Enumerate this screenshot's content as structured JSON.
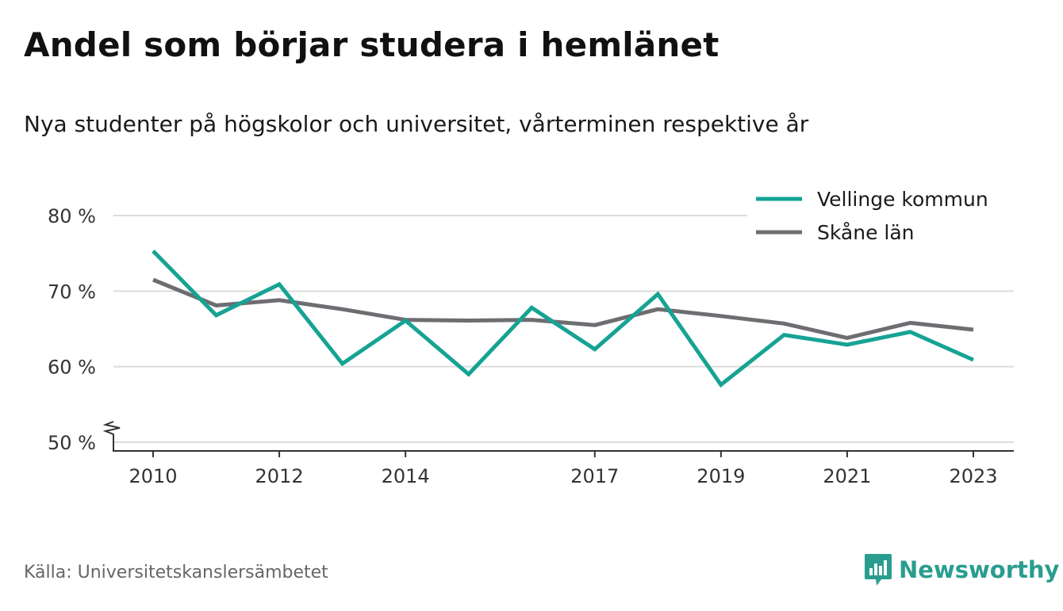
{
  "title": "Andel som börjar studera i hemlänet",
  "subtitle": "Nya studenter på högskolor och universitet, vårterminen respektive år",
  "source": "Källa: Universitetskanslersämbetet",
  "brand": {
    "name": "Newsworthy",
    "icon": "newsworthy-logo-icon",
    "color": "#2a9d8f"
  },
  "chart_data": {
    "type": "line",
    "x": [
      2010,
      2011,
      2012,
      2013,
      2014,
      2015,
      2016,
      2017,
      2018,
      2019,
      2020,
      2021,
      2022,
      2023
    ],
    "x_tick_labels": [
      "2010",
      "2012",
      "2014",
      "2017",
      "2019",
      "2021",
      "2023"
    ],
    "x_tick_values": [
      2010,
      2012,
      2014,
      2017,
      2019,
      2021,
      2023
    ],
    "y_tick_labels": [
      "80 %",
      "70 %",
      "60 %",
      "50 %"
    ],
    "y_tick_values": [
      80,
      70,
      60,
      50
    ],
    "ylim": [
      50,
      80
    ],
    "y_axis_break": true,
    "grid": true,
    "legend_position": "top-right",
    "series": [
      {
        "name": "Vellinge kommun",
        "color": "#16a394",
        "values": [
          75.3,
          66.8,
          70.9,
          60.4,
          66.1,
          59.0,
          67.8,
          62.3,
          69.6,
          57.6,
          64.2,
          62.9,
          64.6,
          60.9
        ]
      },
      {
        "name": "Skåne län",
        "color": "#6e6d72",
        "values": [
          71.5,
          68.1,
          68.8,
          67.6,
          66.2,
          66.1,
          66.2,
          65.5,
          67.6,
          66.7,
          65.7,
          63.8,
          65.8,
          64.9
        ]
      }
    ]
  }
}
